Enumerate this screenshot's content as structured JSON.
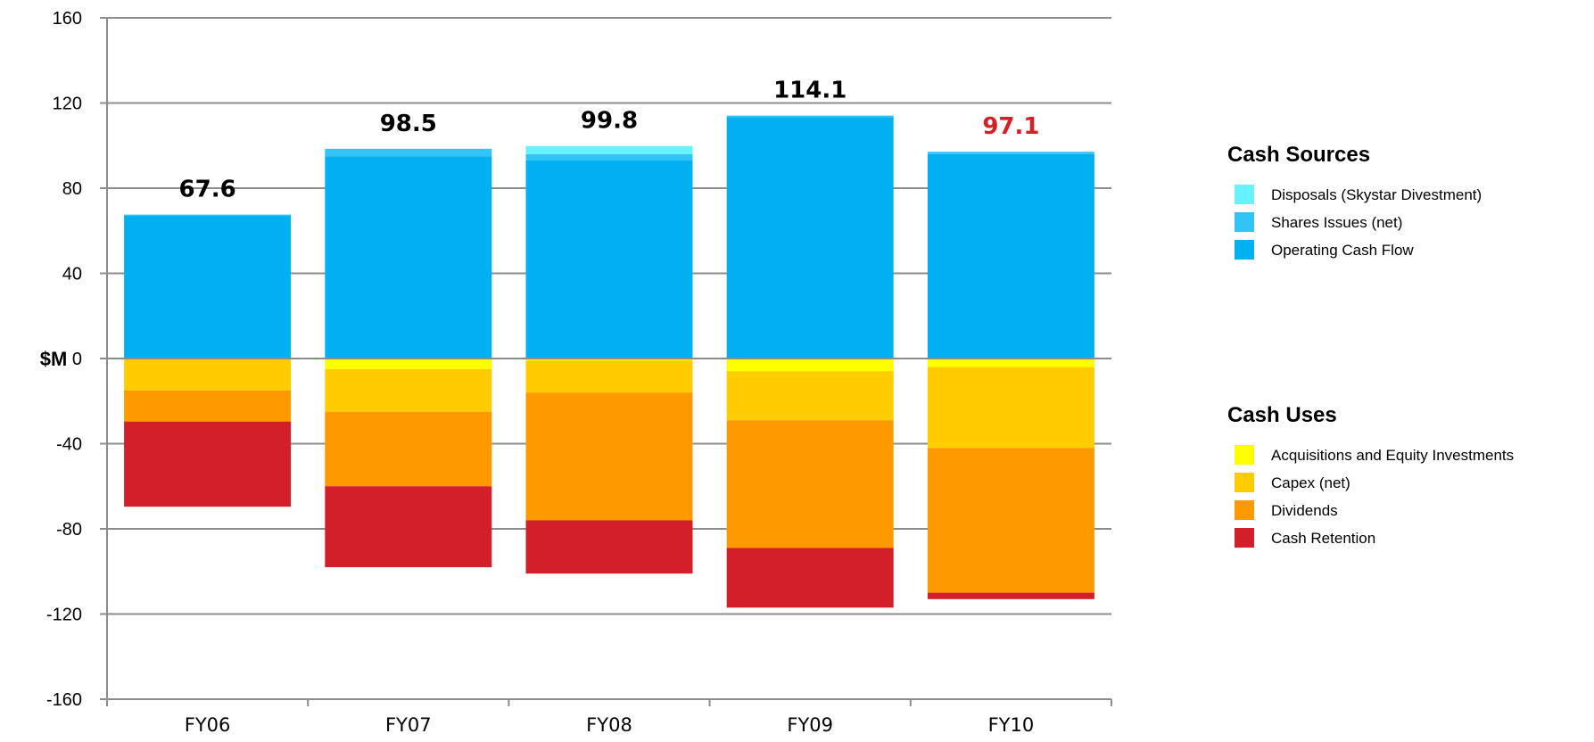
{
  "chart_data": {
    "type": "bar",
    "stacked": true,
    "categories": [
      "FY06",
      "FY07",
      "FY08",
      "FY09",
      "FY10"
    ],
    "ylabel": "$M",
    "ylim": [
      -160,
      160
    ],
    "yticks": [
      160,
      120,
      80,
      40,
      0,
      -40,
      -80,
      -120,
      -160
    ],
    "grid": true,
    "totals": [
      {
        "label": "67.6",
        "value": 67.6,
        "color": "#000000"
      },
      {
        "label": "98.5",
        "value": 98.5,
        "color": "#000000"
      },
      {
        "label": "99.8",
        "value": 99.8,
        "color": "#000000"
      },
      {
        "label": "114.1",
        "value": 114.1,
        "color": "#000000"
      },
      {
        "label": "97.1",
        "value": 97.1,
        "color": "#d42027"
      }
    ],
    "sources": {
      "title": "Cash Sources",
      "series": [
        {
          "name": "Operating Cash Flow",
          "color": "#00b0f0",
          "values": [
            67.0,
            95.0,
            93.0,
            113.4,
            96.0
          ]
        },
        {
          "name": "Shares Issues (net)",
          "color": "#33c4f7",
          "values": [
            0.6,
            3.5,
            3.0,
            0.7,
            1.1
          ]
        },
        {
          "name": "Disposals (Skystar Divestment)",
          "color": "#66f2ff",
          "values": [
            0,
            0,
            3.8,
            0,
            0
          ]
        }
      ],
      "legend_order": [
        "Disposals (Skystar Divestment)",
        "Shares Issues (net)",
        "Operating Cash Flow"
      ]
    },
    "uses": {
      "title": "Cash Uses",
      "series": [
        {
          "name": "Acquisitions and Equity Investments",
          "color": "#ffff00",
          "values": [
            0,
            5,
            1,
            6,
            4
          ]
        },
        {
          "name": "Capex (net)",
          "color": "#ffcc00",
          "values": [
            15,
            20,
            15,
            23,
            38
          ]
        },
        {
          "name": "Dividends",
          "color": "#ff9900",
          "values": [
            14.6,
            35,
            60,
            60,
            68
          ]
        },
        {
          "name": "Cash Retention",
          "color": "#d21f29",
          "values": [
            40,
            38,
            25,
            28,
            3
          ]
        }
      ],
      "legend_order": [
        "Acquisitions and Equity Investments",
        "Capex (net)",
        "Dividends",
        "Cash Retention"
      ]
    }
  }
}
